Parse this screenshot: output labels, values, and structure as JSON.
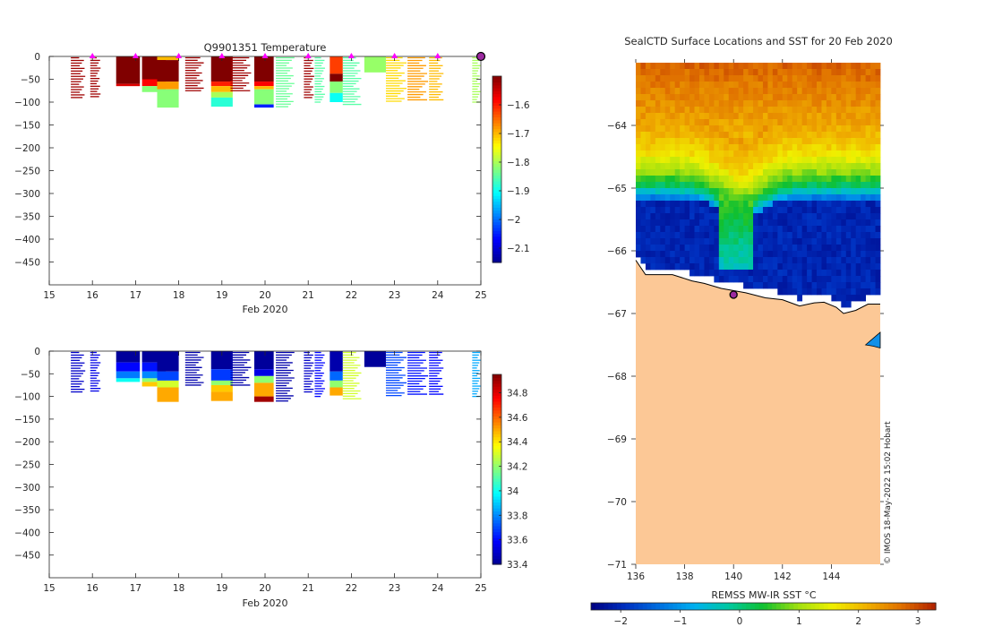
{
  "colors": {
    "jet": [
      "#00008f",
      "#0000ff",
      "#0080ff",
      "#00ffff",
      "#80ff80",
      "#ffff00",
      "#ff8000",
      "#ff0000",
      "#800000"
    ],
    "sst": [
      "#000080",
      "#0030c0",
      "#0070e0",
      "#00b0f0",
      "#00c8a0",
      "#10c030",
      "#a0e010",
      "#f0f000",
      "#f0b000",
      "#e07000",
      "#b02000"
    ],
    "land": "#fcc896",
    "profile_marker": "#ff00ff",
    "position_marker": "#9c2aa0"
  },
  "chart_data": [
    {
      "id": "temperature",
      "type": "heatmap",
      "title": "Q9901351  Temperature",
      "xlabel": "Feb 2020",
      "ylabel": "",
      "xlim": [
        15,
        25
      ],
      "ylim": [
        -500,
        0
      ],
      "x_ticks": [
        15,
        16,
        17,
        18,
        19,
        20,
        21,
        22,
        23,
        24,
        25
      ],
      "y_ticks": [
        0,
        -50,
        -100,
        -150,
        -200,
        -250,
        -300,
        -350,
        -400,
        -450
      ],
      "colorbar": {
        "range": [
          -2.15,
          -1.5
        ],
        "ticks": [
          -1.6,
          -1.7,
          -1.8,
          -1.9,
          -2,
          -2.1
        ]
      },
      "profile_markers": [
        16,
        17,
        18,
        19,
        20,
        21,
        22,
        23,
        24
      ],
      "last_profile_marker": 25,
      "profiles": [
        {
          "x": 15.5,
          "w": 0.35,
          "type": "lines",
          "depth": 90,
          "value": -1.52
        },
        {
          "x": 15.95,
          "w": 0.25,
          "type": "lines",
          "depth": 88,
          "value": -1.52
        },
        {
          "x": 16.55,
          "w": 0.55,
          "type": "block",
          "segs": [
            [
              0,
              60,
              -1.5
            ],
            [
              60,
              65,
              -1.56
            ]
          ]
        },
        {
          "x": 17.15,
          "w": 0.55,
          "type": "block",
          "segs": [
            [
              0,
              50,
              -1.5
            ],
            [
              50,
              65,
              -1.58
            ],
            [
              65,
              78,
              -1.82
            ]
          ]
        },
        {
          "x": 17.5,
          "w": 0.5,
          "type": "block",
          "segs": [
            [
              0,
              8,
              -1.7
            ],
            [
              8,
              55,
              -1.5
            ],
            [
              55,
              72,
              -1.68
            ],
            [
              72,
              112,
              -1.82
            ]
          ]
        },
        {
          "x": 18.15,
          "w": 0.45,
          "type": "lines",
          "depth": 75,
          "value": -1.52
        },
        {
          "x": 18.75,
          "w": 0.5,
          "type": "block",
          "segs": [
            [
              0,
              55,
              -1.5
            ],
            [
              55,
              65,
              -1.6
            ],
            [
              65,
              78,
              -1.7
            ],
            [
              78,
              90,
              -1.8
            ],
            [
              90,
              110,
              -1.88
            ]
          ]
        },
        {
          "x": 19.2,
          "w": 0.5,
          "type": "lines",
          "depth": 75,
          "value": -1.52
        },
        {
          "x": 19.75,
          "w": 0.45,
          "type": "block",
          "segs": [
            [
              0,
              55,
              -1.5
            ],
            [
              55,
              65,
              -1.58
            ],
            [
              65,
              72,
              -1.7
            ],
            [
              72,
              105,
              -1.82
            ],
            [
              105,
              112,
              -2.05
            ]
          ]
        },
        {
          "x": 20.25,
          "w": 0.45,
          "type": "lines",
          "depth": 110,
          "value": -1.84
        },
        {
          "x": 20.9,
          "w": 0.25,
          "type": "lines",
          "depth": 90,
          "value": -1.52
        },
        {
          "x": 21.15,
          "w": 0.25,
          "type": "lines",
          "depth": 100,
          "value": -1.85
        },
        {
          "x": 21.5,
          "w": 0.3,
          "type": "block",
          "segs": [
            [
              0,
              38,
              -1.62
            ],
            [
              38,
              55,
              -1.5
            ],
            [
              55,
              80,
              -1.82
            ],
            [
              80,
              100,
              -1.9
            ]
          ]
        },
        {
          "x": 21.8,
          "w": 0.45,
          "type": "lines",
          "depth": 105,
          "value": -1.85
        },
        {
          "x": 22.3,
          "w": 0.5,
          "type": "block",
          "segs": [
            [
              0,
              35,
              -1.81
            ]
          ]
        },
        {
          "x": 22.8,
          "w": 0.5,
          "type": "lines",
          "depth": 98,
          "value": -1.72
        },
        {
          "x": 23.3,
          "w": 0.5,
          "type": "lines",
          "depth": 95,
          "value": -1.68
        },
        {
          "x": 23.8,
          "w": 0.35,
          "type": "lines",
          "depth": 95,
          "value": -1.7
        },
        {
          "x": 24.8,
          "w": 0.2,
          "type": "lines",
          "depth": 100,
          "value": -1.8
        }
      ]
    },
    {
      "id": "salinity",
      "type": "heatmap",
      "title": "",
      "xlabel": "Feb 2020",
      "ylabel": "",
      "xlim": [
        15,
        25
      ],
      "ylim": [
        -500,
        0
      ],
      "x_ticks": [
        15,
        16,
        17,
        18,
        19,
        20,
        21,
        22,
        23,
        24,
        25
      ],
      "y_ticks": [
        0,
        -50,
        -100,
        -150,
        -200,
        -250,
        -300,
        -350,
        -400,
        -450
      ],
      "colorbar": {
        "range": [
          33.4,
          34.95
        ],
        "ticks": [
          34.8,
          34.6,
          34.4,
          34.2,
          34,
          33.8,
          33.6,
          33.4
        ]
      },
      "profiles": [
        {
          "x": 15.5,
          "w": 0.35,
          "type": "lines",
          "depth": 90,
          "value": 33.5
        },
        {
          "x": 15.95,
          "w": 0.25,
          "type": "lines",
          "depth": 88,
          "value": 33.55
        },
        {
          "x": 16.55,
          "w": 0.55,
          "type": "block",
          "segs": [
            [
              0,
              25,
              33.42
            ],
            [
              25,
              45,
              33.6
            ],
            [
              45,
              60,
              33.78
            ],
            [
              60,
              68,
              34.0
            ]
          ]
        },
        {
          "x": 17.15,
          "w": 0.55,
          "type": "block",
          "segs": [
            [
              0,
              25,
              33.42
            ],
            [
              25,
              45,
              33.62
            ],
            [
              45,
              60,
              33.8
            ],
            [
              60,
              68,
              34.2
            ],
            [
              68,
              78,
              34.45
            ]
          ]
        },
        {
          "x": 17.5,
          "w": 0.5,
          "type": "block",
          "segs": [
            [
              0,
              45,
              33.42
            ],
            [
              45,
              65,
              33.7
            ],
            [
              65,
              80,
              34.3
            ],
            [
              80,
              112,
              34.5
            ]
          ]
        },
        {
          "x": 18.15,
          "w": 0.45,
          "type": "lines",
          "depth": 75,
          "value": 33.45
        },
        {
          "x": 18.75,
          "w": 0.5,
          "type": "block",
          "segs": [
            [
              0,
              40,
              33.42
            ],
            [
              40,
              65,
              33.68
            ],
            [
              65,
              75,
              34.2
            ],
            [
              75,
              90,
              34.45
            ],
            [
              90,
              110,
              34.5
            ]
          ]
        },
        {
          "x": 19.2,
          "w": 0.5,
          "type": "lines",
          "depth": 75,
          "value": 33.45
        },
        {
          "x": 19.75,
          "w": 0.45,
          "type": "block",
          "segs": [
            [
              0,
              40,
              33.42
            ],
            [
              40,
              55,
              33.55
            ],
            [
              55,
              70,
              34.2
            ],
            [
              70,
              100,
              34.5
            ],
            [
              100,
              112,
              34.9
            ]
          ]
        },
        {
          "x": 20.25,
          "w": 0.45,
          "type": "lines",
          "depth": 110,
          "value": 33.45
        },
        {
          "x": 20.9,
          "w": 0.25,
          "type": "lines",
          "depth": 90,
          "value": 33.5
        },
        {
          "x": 21.15,
          "w": 0.25,
          "type": "lines",
          "depth": 100,
          "value": 33.6
        },
        {
          "x": 21.5,
          "w": 0.3,
          "type": "block",
          "segs": [
            [
              0,
              45,
              33.45
            ],
            [
              45,
              65,
              33.75
            ],
            [
              65,
              80,
              34.2
            ],
            [
              80,
              98,
              34.5
            ]
          ]
        },
        {
          "x": 21.8,
          "w": 0.45,
          "type": "lines",
          "depth": 105,
          "value": 34.3
        },
        {
          "x": 22.3,
          "w": 0.5,
          "type": "block",
          "segs": [
            [
              0,
              35,
              33.42
            ]
          ]
        },
        {
          "x": 22.8,
          "w": 0.5,
          "type": "lines",
          "depth": 98,
          "value": 33.7
        },
        {
          "x": 23.3,
          "w": 0.5,
          "type": "lines",
          "depth": 95,
          "value": 33.62
        },
        {
          "x": 23.8,
          "w": 0.35,
          "type": "lines",
          "depth": 95,
          "value": 33.6
        },
        {
          "x": 24.8,
          "w": 0.2,
          "type": "lines",
          "depth": 100,
          "value": 33.85
        }
      ]
    },
    {
      "id": "sst_map",
      "type": "heatmap",
      "title": "SealCTD Surface Locations and SST for 20 Feb 2020",
      "xlabel": "",
      "ylabel": "",
      "xlim": [
        136,
        146
      ],
      "ylim": [
        -71,
        -63
      ],
      "x_ticks": [
        136,
        138,
        140,
        142,
        144
      ],
      "y_ticks": [
        -64,
        -65,
        -66,
        -67,
        -68,
        -69,
        -70,
        -71
      ],
      "colorbar": {
        "label": "REMSS MW-IR SST °C",
        "range": [
          -2.5,
          3.3
        ],
        "ticks": [
          -2,
          -1,
          0,
          1,
          2,
          3
        ]
      },
      "coastline": [
        [
          136,
          -66.15
        ],
        [
          136.4,
          -66.38
        ],
        [
          137.5,
          -66.38
        ],
        [
          138.3,
          -66.48
        ],
        [
          138.8,
          -66.52
        ],
        [
          139.5,
          -66.6
        ],
        [
          140.5,
          -66.67
        ],
        [
          141.3,
          -66.75
        ],
        [
          142.0,
          -66.78
        ],
        [
          142.7,
          -66.88
        ],
        [
          143.3,
          -66.83
        ],
        [
          143.7,
          -66.82
        ],
        [
          144.2,
          -66.9
        ],
        [
          144.5,
          -67.0
        ],
        [
          145.0,
          -66.95
        ],
        [
          145.5,
          -66.85
        ],
        [
          146,
          -66.85
        ]
      ],
      "ice_patch": [
        [
          145.4,
          -67.5
        ],
        [
          146,
          -67.3
        ],
        [
          146,
          -67.55
        ],
        [
          145.7,
          -67.52
        ]
      ],
      "surface_location": [
        140.0,
        -66.7
      ],
      "watermark": "© IMOS 18-May-2022 15:02 Hobart"
    }
  ]
}
